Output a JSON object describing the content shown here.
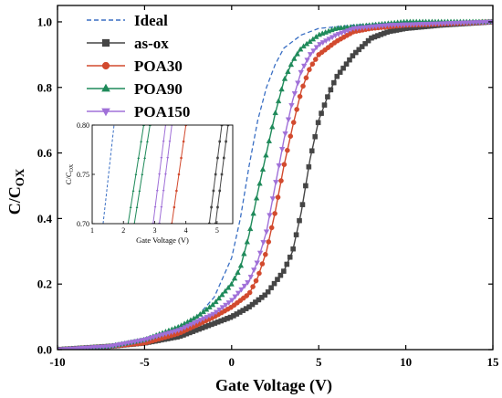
{
  "chart_data": {
    "type": "line",
    "xlabel": "Gate Voltage (V)",
    "ylabel_main": "C/C",
    "ylabel_sub": "OX",
    "xlim": [
      -10,
      15
    ],
    "ylim": [
      0.0,
      1.05
    ],
    "xticks": [
      -10,
      -5,
      0,
      5,
      10,
      15
    ],
    "xtick_labels": [
      "-10",
      "-5",
      "0",
      "5",
      "10",
      "15"
    ],
    "yticks": [
      0.0,
      0.2,
      0.4,
      0.6,
      0.8,
      1.0
    ],
    "ytick_labels": [
      "0.0",
      "0.2",
      "0.4",
      "0.6",
      "0.8",
      "1.0"
    ],
    "legend_position": "top-left",
    "series": [
      {
        "name": "Ideal",
        "color": "#3a6fc4",
        "marker": "none",
        "dashed": true,
        "points": [
          [
            -10,
            0.0
          ],
          [
            -7,
            0.01
          ],
          [
            -5,
            0.03
          ],
          [
            -3,
            0.07
          ],
          [
            -2,
            0.1
          ],
          [
            -1,
            0.16
          ],
          [
            0,
            0.28
          ],
          [
            0.5,
            0.4
          ],
          [
            1,
            0.56
          ],
          [
            1.5,
            0.7
          ],
          [
            2,
            0.8
          ],
          [
            2.5,
            0.87
          ],
          [
            3,
            0.92
          ],
          [
            4,
            0.96
          ],
          [
            5,
            0.98
          ],
          [
            7,
            0.99
          ],
          [
            10,
            1.0
          ],
          [
            15,
            1.0
          ]
        ]
      },
      {
        "name": "as-ox",
        "color": "#454545",
        "marker": "square",
        "dashed": false,
        "points": [
          [
            -10,
            0.0
          ],
          [
            -7,
            0.01
          ],
          [
            -5,
            0.02
          ],
          [
            -3,
            0.04
          ],
          [
            -1,
            0.08
          ],
          [
            0,
            0.1
          ],
          [
            1,
            0.13
          ],
          [
            2,
            0.17
          ],
          [
            3,
            0.24
          ],
          [
            3.5,
            0.3
          ],
          [
            4,
            0.42
          ],
          [
            4.5,
            0.58
          ],
          [
            5,
            0.7
          ],
          [
            5.5,
            0.77
          ],
          [
            6,
            0.83
          ],
          [
            7,
            0.9
          ],
          [
            8,
            0.95
          ],
          [
            9,
            0.97
          ],
          [
            10,
            0.98
          ],
          [
            12,
            0.99
          ],
          [
            15,
            1.0
          ]
        ]
      },
      {
        "name": "POA30",
        "color": "#d24a2e",
        "marker": "circle",
        "dashed": false,
        "points": [
          [
            -10,
            0.0
          ],
          [
            -7,
            0.01
          ],
          [
            -5,
            0.02
          ],
          [
            -3,
            0.05
          ],
          [
            -1,
            0.1
          ],
          [
            0,
            0.13
          ],
          [
            1,
            0.17
          ],
          [
            1.5,
            0.22
          ],
          [
            2,
            0.3
          ],
          [
            2.5,
            0.42
          ],
          [
            3,
            0.56
          ],
          [
            3.5,
            0.68
          ],
          [
            4,
            0.79
          ],
          [
            4.5,
            0.86
          ],
          [
            5,
            0.9
          ],
          [
            6,
            0.94
          ],
          [
            7,
            0.97
          ],
          [
            8,
            0.98
          ],
          [
            10,
            0.99
          ],
          [
            15,
            1.0
          ]
        ]
      },
      {
        "name": "POA90",
        "color": "#1f8a5a",
        "marker": "triangle",
        "dashed": false,
        "points": [
          [
            -10,
            0.0
          ],
          [
            -7,
            0.01
          ],
          [
            -5,
            0.03
          ],
          [
            -3,
            0.07
          ],
          [
            -2,
            0.1
          ],
          [
            -1,
            0.14
          ],
          [
            0,
            0.2
          ],
          [
            0.5,
            0.25
          ],
          [
            1,
            0.35
          ],
          [
            1.5,
            0.48
          ],
          [
            2,
            0.6
          ],
          [
            2.5,
            0.72
          ],
          [
            3,
            0.82
          ],
          [
            3.5,
            0.88
          ],
          [
            4,
            0.92
          ],
          [
            5,
            0.96
          ],
          [
            6,
            0.98
          ],
          [
            8,
            0.99
          ],
          [
            10,
            1.0
          ],
          [
            15,
            1.0
          ]
        ]
      },
      {
        "name": "POA150",
        "color": "#a070d8",
        "marker": "triangle-down",
        "dashed": false,
        "points": [
          [
            -10,
            0.0
          ],
          [
            -7,
            0.01
          ],
          [
            -5,
            0.03
          ],
          [
            -3,
            0.06
          ],
          [
            -1,
            0.11
          ],
          [
            0,
            0.15
          ],
          [
            1,
            0.21
          ],
          [
            1.5,
            0.27
          ],
          [
            2,
            0.36
          ],
          [
            2.5,
            0.5
          ],
          [
            3,
            0.64
          ],
          [
            3.5,
            0.76
          ],
          [
            4,
            0.85
          ],
          [
            4.5,
            0.9
          ],
          [
            5,
            0.93
          ],
          [
            6,
            0.96
          ],
          [
            7,
            0.98
          ],
          [
            9,
            0.99
          ],
          [
            15,
            1.0
          ]
        ]
      }
    ],
    "inset": {
      "xlabel": "Gate Voltage (V)",
      "ylabel_main": "C/C",
      "ylabel_sub": "OX",
      "xlim": [
        1,
        5.5
      ],
      "ylim": [
        0.7,
        0.8
      ],
      "xticks": [
        1,
        2,
        3,
        4,
        5
      ],
      "xtick_labels": [
        "1",
        "2",
        "3",
        "4",
        "5"
      ],
      "yticks": [
        0.7,
        0.75,
        0.8
      ],
      "ytick_labels": [
        "0.70",
        "0.75",
        "0.80"
      ],
      "series": [
        {
          "name": "Ideal",
          "points": [
            [
              1.35,
              0.7
            ],
            [
              1.7,
              0.8
            ]
          ]
        },
        {
          "name": "POA90",
          "points": [
            [
              2.15,
              0.7
            ],
            [
              2.65,
              0.8
            ]
          ]
        },
        {
          "name": "POA90",
          "points": [
            [
              2.35,
              0.7
            ],
            [
              2.85,
              0.8
            ]
          ]
        },
        {
          "name": "POA150",
          "points": [
            [
              2.95,
              0.7
            ],
            [
              3.35,
              0.8
            ]
          ]
        },
        {
          "name": "POA150",
          "points": [
            [
              3.15,
              0.7
            ],
            [
              3.55,
              0.8
            ]
          ]
        },
        {
          "name": "POA30",
          "points": [
            [
              3.55,
              0.7
            ],
            [
              4.0,
              0.8
            ]
          ]
        },
        {
          "name": "as-ox",
          "points": [
            [
              4.75,
              0.7
            ],
            [
              5.15,
              0.8
            ]
          ]
        },
        {
          "name": "as-ox",
          "points": [
            [
              4.95,
              0.7
            ],
            [
              5.35,
              0.8
            ]
          ]
        }
      ]
    }
  }
}
